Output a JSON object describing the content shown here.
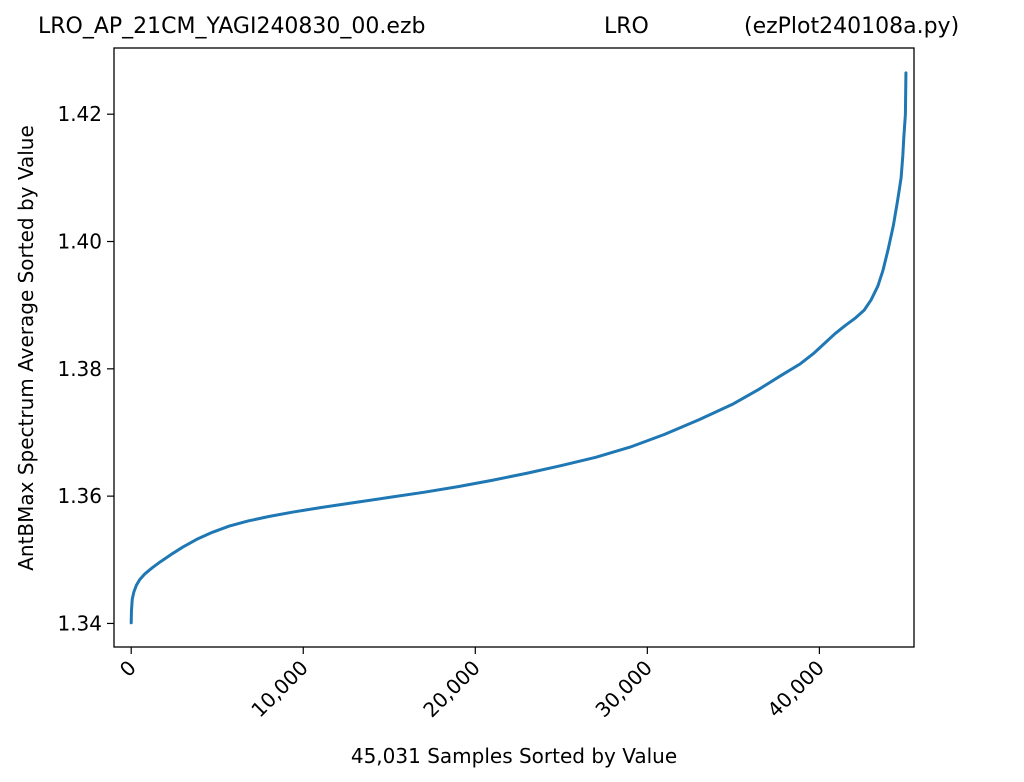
{
  "header": {
    "left": "LRO_AP_21CM_YAGI240830_00.ezb",
    "middle": "LRO",
    "right": "(ezPlot240108a.py)"
  },
  "chart_data": {
    "type": "line",
    "xlabel": "45,031 Samples Sorted by Value",
    "ylabel": "AntBMax Spectrum Average Sorted by Value",
    "xlim": [
      -1000,
      45500
    ],
    "ylim": [
      1.3363,
      1.4304
    ],
    "x_ticks": [
      0,
      10000,
      20000,
      30000,
      40000
    ],
    "x_tick_labels": [
      "0",
      "10,000",
      "20,000",
      "30,000",
      "40,000"
    ],
    "y_ticks": [
      1.34,
      1.36,
      1.38,
      1.4,
      1.42
    ],
    "y_tick_labels": [
      "1.34",
      "1.36",
      "1.38",
      "1.40",
      "1.42"
    ],
    "grid": false,
    "series": [
      {
        "color": "#1f77b4",
        "x": [
          0,
          15,
          60,
          150,
          300,
          500,
          800,
          1200,
          1700,
          2300,
          3000,
          3800,
          4700,
          5700,
          6800,
          8000,
          9400,
          11000,
          13000,
          15000,
          17000,
          19000,
          21000,
          23000,
          25000,
          27000,
          29000,
          31000,
          33000,
          35000,
          36500,
          37800,
          38900,
          39700,
          40300,
          40900,
          41500,
          42100,
          42600,
          43000,
          43400,
          43700,
          44000,
          44300,
          44550,
          44750,
          44850,
          44900,
          44950,
          45000,
          45031
        ],
        "y": [
          1.3401,
          1.342,
          1.3438,
          1.3449,
          1.346,
          1.3469,
          1.3478,
          1.3487,
          1.3497,
          1.3508,
          1.352,
          1.3532,
          1.3543,
          1.3553,
          1.3561,
          1.3568,
          1.3575,
          1.3582,
          1.359,
          1.3598,
          1.3606,
          1.3615,
          1.3625,
          1.3636,
          1.3648,
          1.3661,
          1.3677,
          1.3697,
          1.372,
          1.3745,
          1.3768,
          1.379,
          1.3808,
          1.3825,
          1.384,
          1.3855,
          1.3868,
          1.388,
          1.3892,
          1.3908,
          1.393,
          1.3955,
          1.3988,
          1.4025,
          1.4065,
          1.41,
          1.4135,
          1.416,
          1.418,
          1.42,
          1.4265
        ]
      }
    ]
  }
}
